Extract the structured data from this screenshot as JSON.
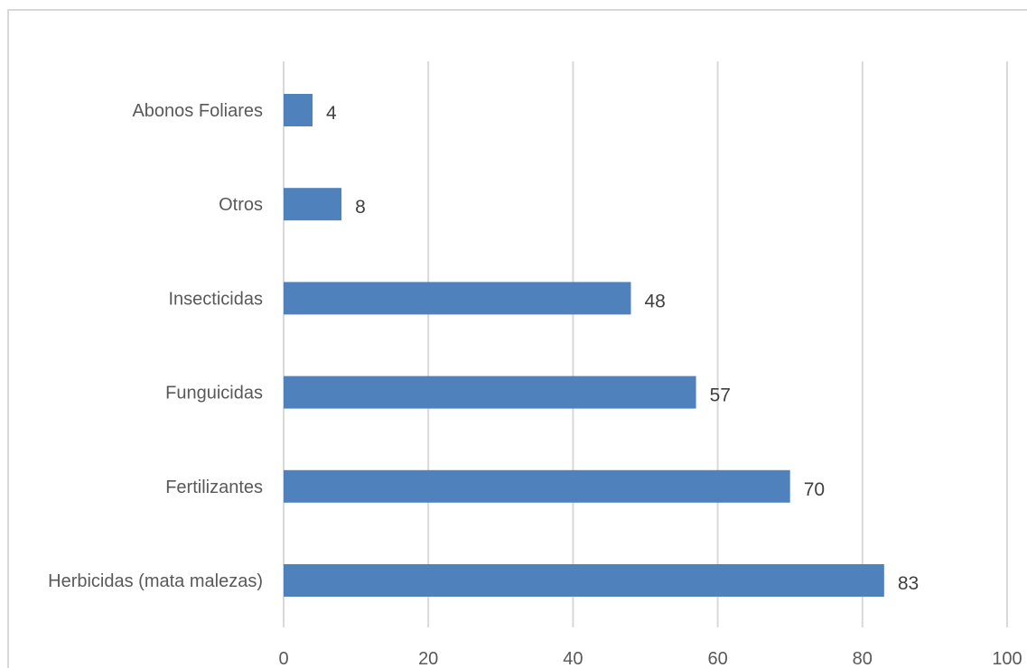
{
  "chart_data": {
    "type": "bar",
    "orientation": "horizontal",
    "categories": [
      "Abonos Foliares",
      "Otros",
      "Insecticidas",
      "Funguicidas",
      "Fertilizantes",
      "Herbicidas (mata malezas)"
    ],
    "values": [
      4,
      8,
      48,
      57,
      70,
      83
    ],
    "data_labels": [
      "4",
      "8",
      "48",
      "57",
      "70",
      "83"
    ],
    "title": "",
    "xlabel": "",
    "ylabel": "",
    "xlim": [
      0,
      100
    ],
    "x_ticks": [
      0,
      20,
      40,
      60,
      80,
      100
    ],
    "x_tick_labels": [
      "0",
      "20",
      "40",
      "60",
      "80",
      "100"
    ],
    "grid": "vertical",
    "legend": "none",
    "bar_color": "#4f81bd",
    "grid_color": "#d9d9d9",
    "frame_color": "#d9d9d9"
  }
}
